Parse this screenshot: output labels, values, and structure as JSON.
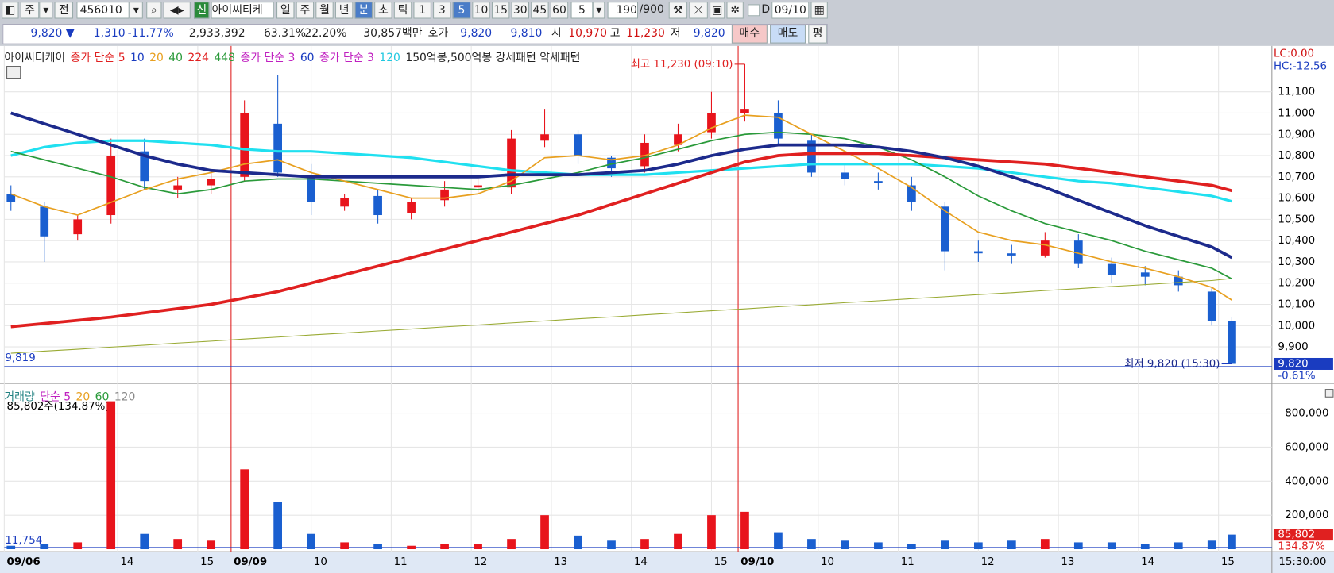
{
  "toolbar": {
    "period": "주",
    "prev": "전",
    "code": "456010",
    "new": "신",
    "name": "아이씨티케",
    "units": [
      "일",
      "주",
      "월",
      "년",
      "분",
      "초",
      "틱"
    ],
    "intervals": [
      "1",
      "3",
      "5",
      "10",
      "15",
      "30",
      "45",
      "60"
    ],
    "interval_input": "5",
    "count": "190",
    "count_max": "/900",
    "d_label": "D",
    "date": "09/10"
  },
  "quote": {
    "price": "9,820 ▼",
    "change": "1,310",
    "change_pct": "-11.77%",
    "volume": "2,933,392",
    "vol_ratio": "63.31%",
    "turnover": "22.20%",
    "amount": "30,857백만",
    "hoga_label": "호가",
    "ask": "9,820",
    "bid": "9,810",
    "open_label": "시",
    "open": "10,970",
    "high_label": "고",
    "high": "11,230",
    "low_label": "저",
    "low": "9,820",
    "buy": "매수",
    "sell": "매도",
    "avg": "평"
  },
  "chart_data": {
    "type": "candlestick",
    "price_legend": [
      {
        "text": "아이씨티케이",
        "color": "#222"
      },
      {
        "text": "종가 단순 5",
        "color": "#e02020"
      },
      {
        "text": "10",
        "color": "#1a3cc0"
      },
      {
        "text": "20",
        "color": "#e8a020"
      },
      {
        "text": "40",
        "color": "#2a9a3a"
      },
      {
        "text": "224",
        "color": "#e02020"
      },
      {
        "text": "448",
        "color": "#2a9a3a"
      },
      {
        "text": "종가 단순 3",
        "color": "#c020c0"
      },
      {
        "text": "60",
        "color": "#1a3cc0"
      },
      {
        "text": "종가 단순 3",
        "color": "#c020c0"
      },
      {
        "text": "120",
        "color": "#20c8e0"
      },
      {
        "text": "150억봉,500억봉 강세패턴  약세패턴",
        "color": "#222"
      }
    ],
    "volume_legend": [
      {
        "text": "거래량",
        "color": "#208080"
      },
      {
        "text": "단순 5",
        "color": "#c020c0"
      },
      {
        "text": "20",
        "color": "#e8a020"
      },
      {
        "text": "60",
        "color": "#2a9a3a"
      },
      {
        "text": "120",
        "color": "#888"
      }
    ],
    "x": [
      1,
      6,
      11,
      16,
      21,
      26,
      31,
      36,
      41,
      46,
      51,
      56,
      61,
      66,
      71,
      76,
      81,
      86,
      91,
      96,
      101,
      106,
      111,
      116,
      121,
      126,
      131,
      136,
      141,
      146,
      151,
      156,
      161,
      166,
      171,
      176,
      181,
      184
    ],
    "open": [
      10620,
      10560,
      10430,
      10520,
      10820,
      10640,
      10660,
      10700,
      10950,
      10700,
      10560,
      10610,
      10530,
      10590,
      10650,
      10650,
      10870,
      10900,
      10790,
      10750,
      10850,
      10910,
      11000,
      11000,
      10870,
      10720,
      10680,
      10660,
      10560,
      10350,
      10340,
      10330,
      10400,
      10290,
      10250,
      10230,
      10160,
      10020
    ],
    "high": [
      10660,
      10580,
      10520,
      10880,
      10880,
      10700,
      10720,
      11060,
      11180,
      10760,
      10620,
      10640,
      10600,
      10680,
      10700,
      10920,
      11020,
      10920,
      10800,
      10900,
      10950,
      11100,
      11230,
      11060,
      10900,
      10760,
      10720,
      10700,
      10580,
      10400,
      10380,
      10440,
      10430,
      10320,
      10280,
      10260,
      10180,
      10040
    ],
    "low": [
      10540,
      10300,
      10400,
      10480,
      10640,
      10600,
      10620,
      10680,
      10700,
      10520,
      10540,
      10480,
      10500,
      10560,
      10620,
      10620,
      10840,
      10760,
      10700,
      10720,
      10820,
      10880,
      10960,
      10850,
      10700,
      10660,
      10640,
      10540,
      10260,
      10300,
      10290,
      10320,
      10270,
      10200,
      10190,
      10160,
      10000,
      9820
    ],
    "close": [
      10580,
      10420,
      10500,
      10800,
      10680,
      10660,
      10690,
      11000,
      10720,
      10580,
      10600,
      10520,
      10580,
      10640,
      10660,
      10880,
      10900,
      10800,
      10740,
      10860,
      10900,
      11000,
      11020,
      10880,
      10720,
      10690,
      10670,
      10580,
      10350,
      10340,
      10330,
      10400,
      10290,
      10240,
      10230,
      10190,
      10020,
      9820
    ],
    "up_color": "#e8141c",
    "down_color": "#1a5fd0",
    "ma_lines": [
      {
        "color": "#9a3",
        "width": 1,
        "values": [
          9870,
          9880,
          9889,
          9899,
          9908,
          9918,
          9927,
          9937,
          9946,
          9956,
          9965,
          9975,
          9984,
          9994,
          10003,
          10013,
          10022,
          10032,
          10041,
          10051,
          10060,
          10070,
          10079,
          10089,
          10098,
          10108,
          10117,
          10127,
          10136,
          10146,
          10155,
          10165,
          10174,
          10184,
          10193,
          10203,
          10212,
          10222
        ]
      },
      {
        "color": "#20e0f0",
        "width": 3,
        "values": [
          10800,
          10840,
          10860,
          10870,
          10870,
          10860,
          10850,
          10830,
          10820,
          10820,
          10810,
          10800,
          10790,
          10770,
          10750,
          10730,
          10720,
          10710,
          10710,
          10710,
          10720,
          10730,
          10740,
          10750,
          10760,
          10760,
          10760,
          10760,
          10750,
          10740,
          10720,
          10700,
          10680,
          10670,
          10650,
          10630,
          10610,
          10585
        ]
      },
      {
        "color": "#2a9a3a",
        "width": 1.6,
        "values": [
          10820,
          10780,
          10740,
          10700,
          10650,
          10620,
          10640,
          10680,
          10690,
          10690,
          10680,
          10670,
          10660,
          10650,
          10640,
          10660,
          10690,
          10720,
          10760,
          10790,
          10830,
          10870,
          10900,
          10910,
          10900,
          10880,
          10840,
          10780,
          10700,
          10610,
          10540,
          10480,
          10440,
          10400,
          10350,
          10310,
          10270,
          10220
        ]
      },
      {
        "color": "#e8a020",
        "width": 1.6,
        "values": [
          10620,
          10560,
          10520,
          10580,
          10640,
          10690,
          10720,
          10760,
          10780,
          10720,
          10680,
          10640,
          10600,
          10600,
          10620,
          10680,
          10790,
          10800,
          10780,
          10800,
          10850,
          10930,
          10990,
          10980,
          10900,
          10820,
          10740,
          10650,
          10540,
          10440,
          10400,
          10380,
          10340,
          10300,
          10270,
          10230,
          10180,
          10120
        ]
      },
      {
        "color": "#e02020",
        "width": 3.5,
        "values": [
          9995,
          10010,
          10025,
          10040,
          10060,
          10080,
          10100,
          10130,
          10160,
          10200,
          10240,
          10280,
          10320,
          10360,
          10400,
          10440,
          10480,
          10520,
          10570,
          10620,
          10670,
          10720,
          10770,
          10800,
          10810,
          10810,
          10810,
          10800,
          10790,
          10780,
          10770,
          10760,
          10740,
          10720,
          10700,
          10680,
          10660,
          10635
        ]
      },
      {
        "color": "#1c2a8c",
        "width": 3.5,
        "values": [
          11000,
          10950,
          10900,
          10850,
          10800,
          10760,
          10730,
          10720,
          10710,
          10700,
          10700,
          10700,
          10700,
          10700,
          10700,
          10710,
          10710,
          10710,
          10720,
          10730,
          10760,
          10800,
          10830,
          10850,
          10850,
          10850,
          10840,
          10820,
          10790,
          10750,
          10700,
          10650,
          10590,
          10530,
          10470,
          10420,
          10370,
          10320
        ]
      }
    ],
    "xlim": [
      0,
      190
    ],
    "xticks": [
      {
        "value": 0,
        "label": "09/06"
      },
      {
        "value": 17,
        "label": "14"
      },
      {
        "value": 29,
        "label": "15"
      },
      {
        "value": 34,
        "label": "09/09"
      },
      {
        "value": 46,
        "label": "10"
      },
      {
        "value": 58,
        "label": "11"
      },
      {
        "value": 70,
        "label": "12"
      },
      {
        "value": 82,
        "label": "13"
      },
      {
        "value": 94,
        "label": "14"
      },
      {
        "value": 106,
        "label": "15"
      },
      {
        "value": 110,
        "label": "09/10"
      },
      {
        "value": 122,
        "label": "10"
      },
      {
        "value": 134,
        "label": "11"
      },
      {
        "value": 146,
        "label": "12"
      },
      {
        "value": 158,
        "label": "13"
      },
      {
        "value": 170,
        "label": "14"
      },
      {
        "value": 182,
        "label": "15"
      }
    ],
    "ylim": [
      9750,
      11300
    ],
    "yticks": [
      {
        "value": 9900,
        "label": "9,900"
      },
      {
        "value": 10000,
        "label": "10,000"
      },
      {
        "value": 10100,
        "label": "10,100"
      },
      {
        "value": 10200,
        "label": "10,200"
      },
      {
        "value": 10300,
        "label": "10,300"
      },
      {
        "value": 10400,
        "label": "10,400"
      },
      {
        "value": 10500,
        "label": "10,500"
      },
      {
        "value": 10600,
        "label": "10,600"
      },
      {
        "value": 10700,
        "label": "10,700"
      },
      {
        "value": 10800,
        "label": "10,800"
      },
      {
        "value": 10900,
        "label": "10,900"
      },
      {
        "value": 11000,
        "label": "11,000"
      },
      {
        "value": 11100,
        "label": "11,100"
      }
    ],
    "volume": {
      "values": [
        20000,
        30000,
        40000,
        870000,
        90000,
        60000,
        50000,
        470000,
        280000,
        90000,
        40000,
        30000,
        20000,
        30000,
        30000,
        60000,
        200000,
        80000,
        50000,
        60000,
        90000,
        200000,
        220000,
        100000,
        60000,
        50000,
        40000,
        30000,
        50000,
        40000,
        50000,
        60000,
        40000,
        40000,
        30000,
        40000,
        50000,
        85802
      ],
      "ylim": [
        0,
        945000
      ],
      "yticks": [
        {
          "value": 200000,
          "label": "200,000"
        },
        {
          "value": 400000,
          "label": "400,000"
        },
        {
          "value": 600000,
          "label": "600,000"
        },
        {
          "value": 800000,
          "label": "800,000"
        }
      ],
      "note": "85,802주(134.87%)",
      "base": {
        "value": 11754,
        "label": "11,754"
      },
      "last": {
        "value": 85802,
        "label": "85,802"
      },
      "last_pct": "134.87%"
    },
    "high_mark": {
      "x": 111,
      "value": 11230,
      "label": "최고 11,230 (09:10)"
    },
    "low_mark": {
      "x": 184,
      "value": 9820,
      "label": "최저 9,820 (15:30)"
    },
    "base": {
      "value": 9819,
      "label": "9,819"
    },
    "last": {
      "value": 9820,
      "label": "9,820"
    },
    "last_pct": "-0.61%",
    "lc": "LC:0.00",
    "hc": "HC:-12.56",
    "time": "15:30:00"
  }
}
